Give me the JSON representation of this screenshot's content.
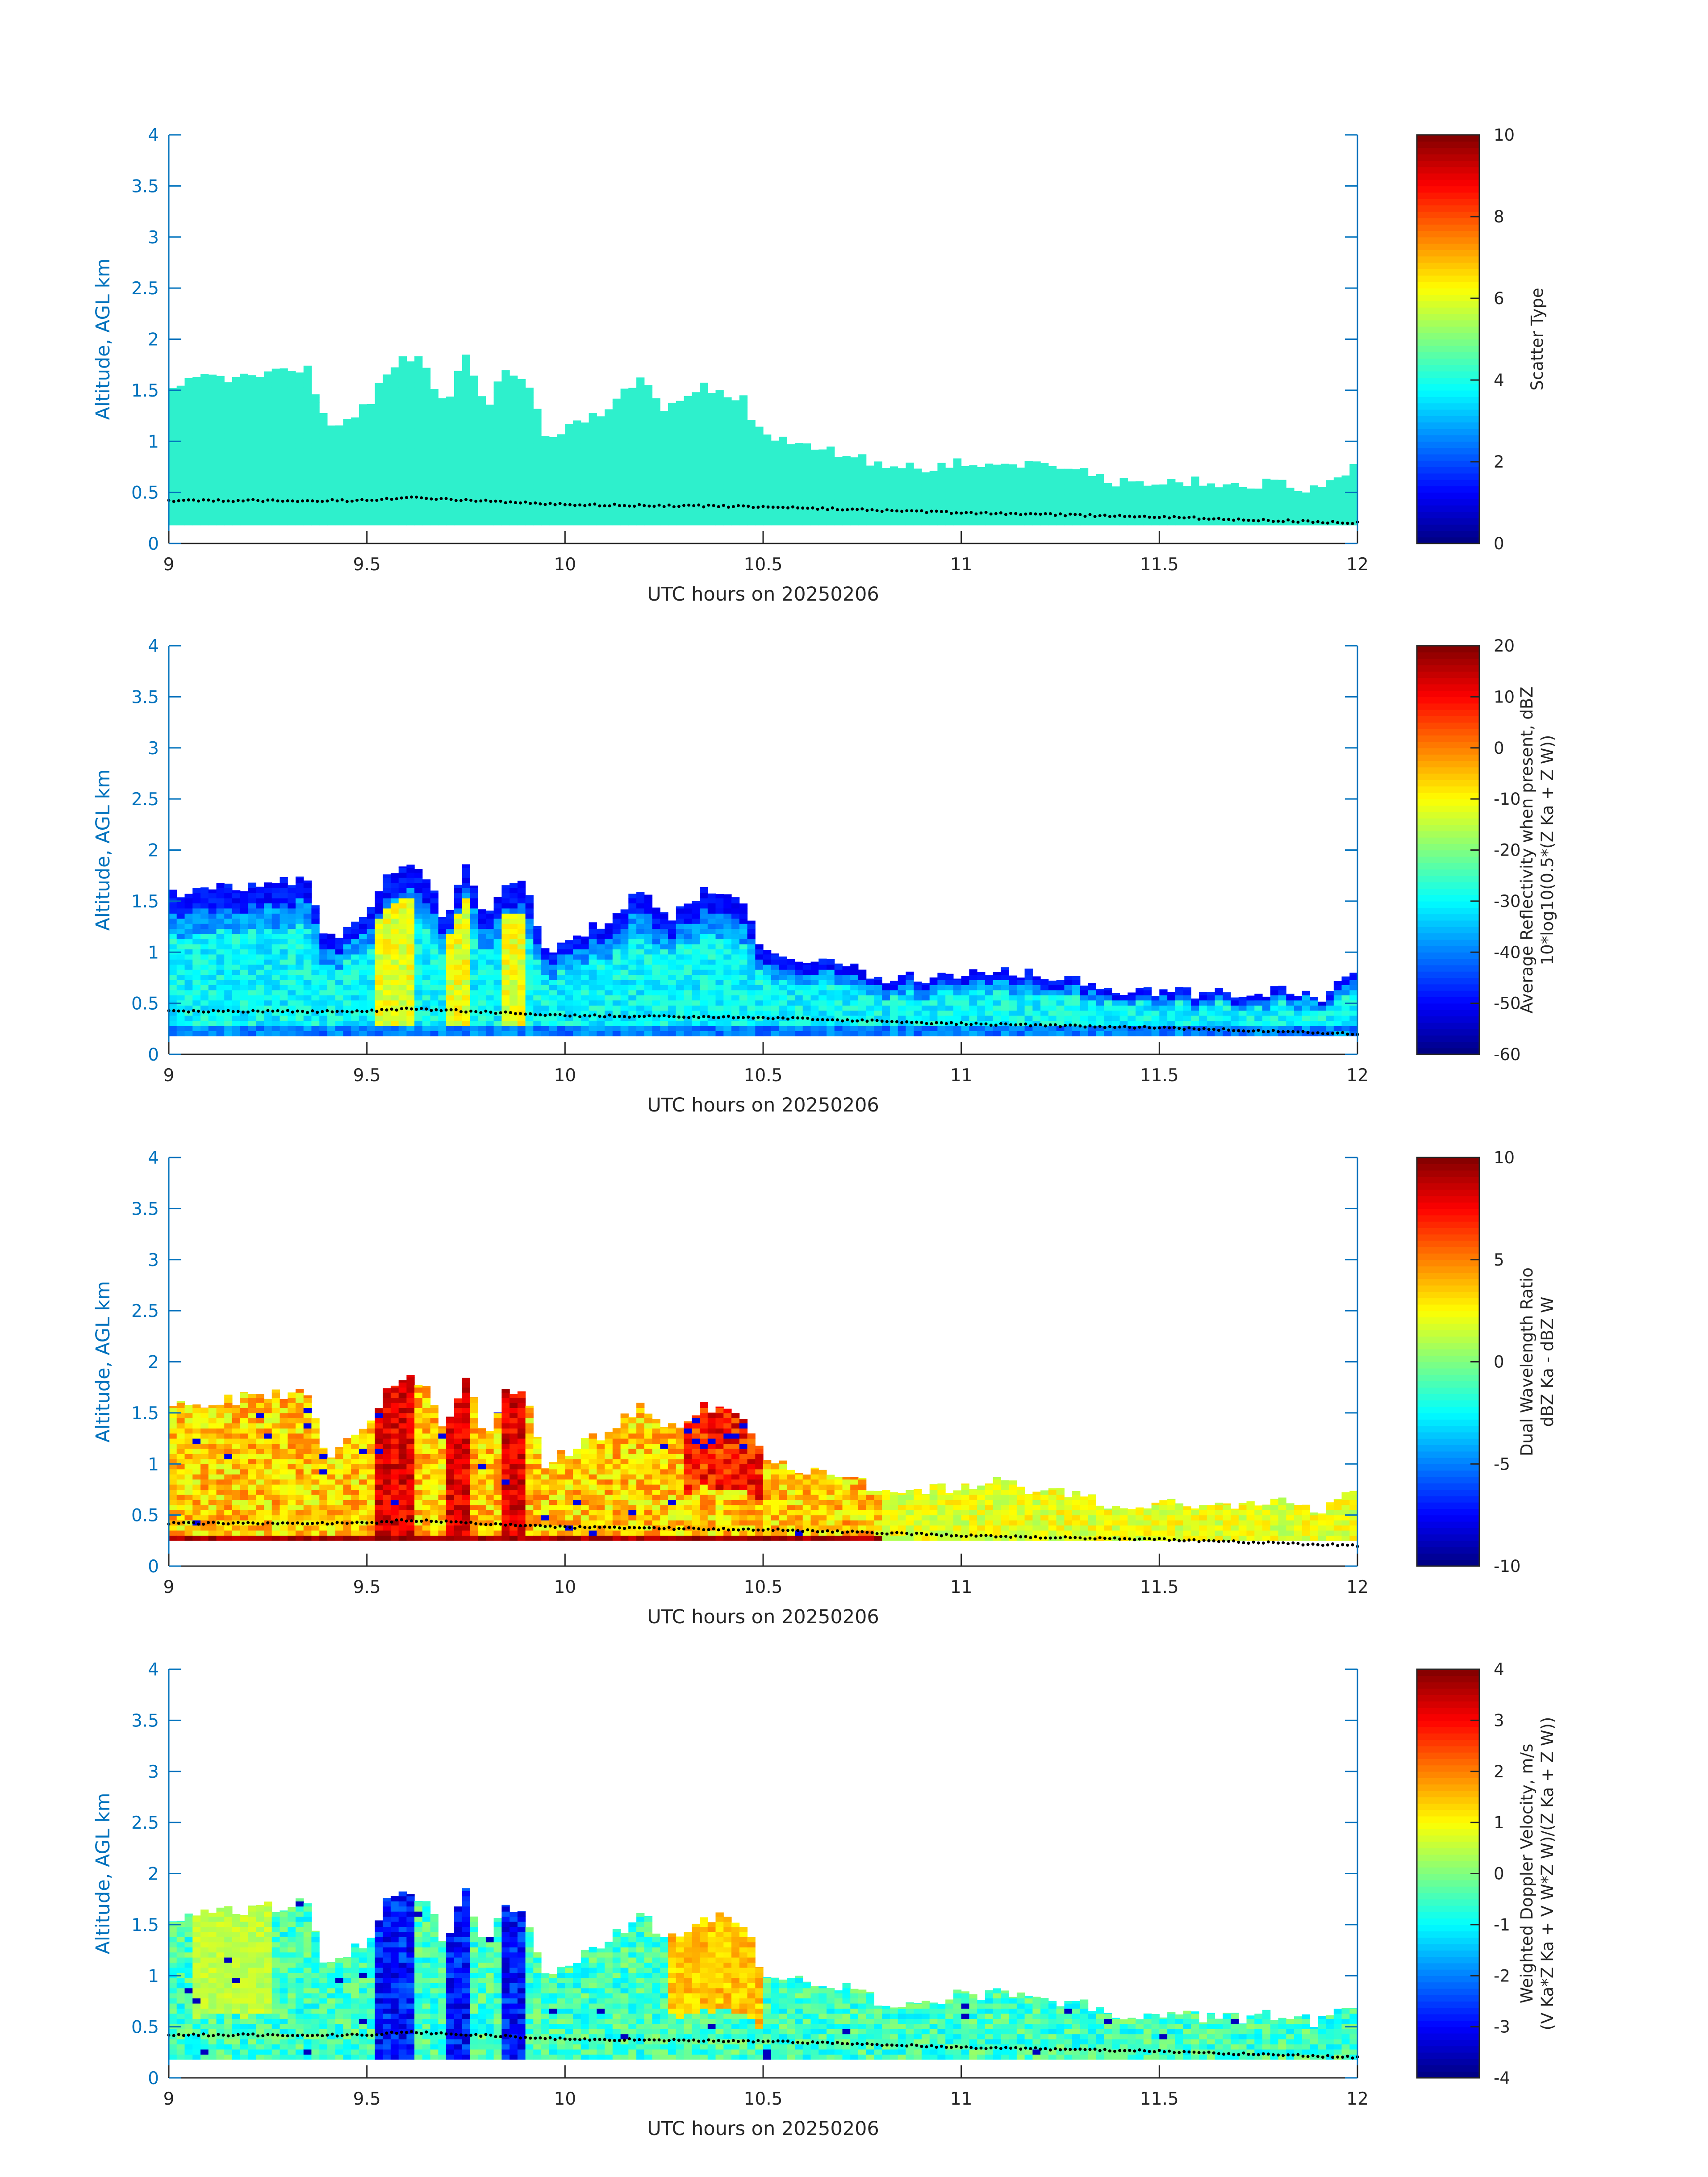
{
  "figure": {
    "colors": {
      "axis": "#262626",
      "yaxis": "#0072bd",
      "scatter_fill": "#2ef0cc",
      "ground_dots": "#000000"
    }
  },
  "chart_data": [
    {
      "type": "heatmap",
      "title": "",
      "xlabel": "UTC hours on 20250206",
      "ylabel": "Altitude, AGL km",
      "xlim": [
        9,
        12
      ],
      "ylim": [
        0,
        4
      ],
      "xticks": [
        "9",
        "9.5",
        "10",
        "10.5",
        "11",
        "11.5",
        "12"
      ],
      "yticks": [
        "0",
        "0.5",
        "1",
        "1.5",
        "2",
        "2.5",
        "3",
        "3.5",
        "4"
      ],
      "colorbar": {
        "label_lines": [
          "Scatter Type"
        ],
        "clim": [
          0,
          10
        ],
        "ticks": [
          "0",
          "2",
          "4",
          "6",
          "8",
          "10"
        ]
      },
      "field": "scatter",
      "value_note": "Uniform scatter type ~3.6 throughout echo",
      "echo_base_km": 0.18,
      "echo_top_km": [
        [
          9.0,
          1.5
        ],
        [
          9.1,
          1.62
        ],
        [
          9.2,
          1.62
        ],
        [
          9.35,
          1.72
        ],
        [
          9.4,
          1.1
        ],
        [
          9.5,
          1.35
        ],
        [
          9.55,
          1.7
        ],
        [
          9.6,
          1.85
        ],
        [
          9.65,
          1.75
        ],
        [
          9.7,
          1.3
        ],
        [
          9.75,
          1.85
        ],
        [
          9.8,
          1.3
        ],
        [
          9.85,
          1.7
        ],
        [
          9.9,
          1.65
        ],
        [
          9.95,
          1.0
        ],
        [
          10.0,
          1.1
        ],
        [
          10.1,
          1.3
        ],
        [
          10.2,
          1.65
        ],
        [
          10.25,
          1.35
        ],
        [
          10.3,
          1.4
        ],
        [
          10.35,
          1.55
        ],
        [
          10.45,
          1.4
        ],
        [
          10.5,
          1.05
        ],
        [
          10.6,
          0.95
        ],
        [
          10.7,
          0.9
        ],
        [
          10.8,
          0.75
        ],
        [
          10.9,
          0.75
        ],
        [
          11.0,
          0.8
        ],
        [
          11.1,
          0.8
        ],
        [
          11.2,
          0.75
        ],
        [
          11.3,
          0.72
        ],
        [
          11.4,
          0.6
        ],
        [
          11.5,
          0.62
        ],
        [
          11.6,
          0.6
        ],
        [
          11.7,
          0.58
        ],
        [
          11.8,
          0.58
        ],
        [
          11.9,
          0.55
        ],
        [
          12.0,
          0.75
        ]
      ],
      "ground_line_km": [
        [
          9.0,
          0.42
        ],
        [
          9.5,
          0.42
        ],
        [
          9.6,
          0.45
        ],
        [
          10.0,
          0.38
        ],
        [
          10.5,
          0.36
        ],
        [
          11.0,
          0.3
        ],
        [
          11.5,
          0.26
        ],
        [
          12.0,
          0.2
        ]
      ]
    },
    {
      "type": "heatmap",
      "title": "",
      "xlabel": "UTC hours on 20250206",
      "ylabel": "Altitude, AGL km",
      "xlim": [
        9,
        12
      ],
      "ylim": [
        0,
        4
      ],
      "xticks": [
        "9",
        "9.5",
        "10",
        "10.5",
        "11",
        "11.5",
        "12"
      ],
      "yticks": [
        "0",
        "0.5",
        "1",
        "1.5",
        "2",
        "2.5",
        "3",
        "3.5",
        "4"
      ],
      "colorbar": {
        "label_lines": [
          "Average Reflectivity when present, dBZ",
          "10*log10(0.5*(Z Ka + Z W))"
        ],
        "clim": [
          -60,
          20
        ],
        "ticks": [
          "-60",
          "-50",
          "-40",
          "-30",
          "-20",
          "-10",
          "0",
          "10",
          "20"
        ]
      },
      "field": "reflectivity",
      "value_note": "Mostly -35 to -25 dBZ; -55 dBZ near echo tops; -15 to -5 dBZ in columns near 9.55-9.85 h",
      "echo_base_km": 0.18,
      "echo_top_km": [
        [
          9.0,
          1.55
        ],
        [
          9.1,
          1.65
        ],
        [
          9.2,
          1.65
        ],
        [
          9.35,
          1.7
        ],
        [
          9.4,
          1.1
        ],
        [
          9.5,
          1.35
        ],
        [
          9.55,
          1.75
        ],
        [
          9.6,
          1.85
        ],
        [
          9.65,
          1.75
        ],
        [
          9.7,
          1.3
        ],
        [
          9.75,
          1.85
        ],
        [
          9.8,
          1.3
        ],
        [
          9.85,
          1.7
        ],
        [
          9.9,
          1.65
        ],
        [
          9.95,
          1.0
        ],
        [
          10.0,
          1.1
        ],
        [
          10.1,
          1.3
        ],
        [
          10.2,
          1.65
        ],
        [
          10.25,
          1.35
        ],
        [
          10.3,
          1.4
        ],
        [
          10.35,
          1.6
        ],
        [
          10.45,
          1.45
        ],
        [
          10.5,
          1.05
        ],
        [
          10.6,
          0.95
        ],
        [
          10.7,
          0.9
        ],
        [
          10.8,
          0.75
        ],
        [
          10.9,
          0.75
        ],
        [
          11.0,
          0.8
        ],
        [
          11.1,
          0.82
        ],
        [
          11.2,
          0.78
        ],
        [
          11.3,
          0.72
        ],
        [
          11.4,
          0.62
        ],
        [
          11.5,
          0.62
        ],
        [
          11.6,
          0.6
        ],
        [
          11.7,
          0.58
        ],
        [
          11.8,
          0.62
        ],
        [
          11.9,
          0.55
        ],
        [
          12.0,
          0.78
        ]
      ],
      "ground_line_km": [
        [
          9.0,
          0.42
        ],
        [
          9.5,
          0.42
        ],
        [
          9.6,
          0.45
        ],
        [
          10.0,
          0.38
        ],
        [
          10.5,
          0.36
        ],
        [
          11.0,
          0.3
        ],
        [
          11.5,
          0.26
        ],
        [
          12.0,
          0.2
        ]
      ]
    },
    {
      "type": "heatmap",
      "title": "",
      "xlabel": "UTC hours on 20250206",
      "ylabel": "Altitude, AGL km",
      "xlim": [
        9,
        12
      ],
      "ylim": [
        0,
        4
      ],
      "xticks": [
        "9",
        "9.5",
        "10",
        "10.5",
        "11",
        "11.5",
        "12"
      ],
      "yticks": [
        "0",
        "0.5",
        "1",
        "1.5",
        "2",
        "2.5",
        "3",
        "3.5",
        "4"
      ],
      "colorbar": {
        "label_lines": [
          "Dual Wavelength Ratio",
          "dBZ Ka - dBZ W"
        ],
        "clim": [
          -10,
          10
        ],
        "ticks": [
          "-10",
          "-5",
          "0",
          "5",
          "10"
        ]
      },
      "field": "dwr",
      "value_note": "Mostly 2 to 5 dB; 6 to 9 dB in dense columns; ~8 to 10 dB in a thin layer near 0.28 km",
      "echo_base_km": 0.25,
      "echo_top_km": [
        [
          9.0,
          1.6
        ],
        [
          9.1,
          1.6
        ],
        [
          9.2,
          1.65
        ],
        [
          9.35,
          1.7
        ],
        [
          9.4,
          1.05
        ],
        [
          9.5,
          1.35
        ],
        [
          9.55,
          1.75
        ],
        [
          9.6,
          1.85
        ],
        [
          9.65,
          1.75
        ],
        [
          9.7,
          1.3
        ],
        [
          9.75,
          1.85
        ],
        [
          9.8,
          1.3
        ],
        [
          9.85,
          1.7
        ],
        [
          9.9,
          1.65
        ],
        [
          9.95,
          1.0
        ],
        [
          10.0,
          1.1
        ],
        [
          10.1,
          1.3
        ],
        [
          10.2,
          1.6
        ],
        [
          10.25,
          1.35
        ],
        [
          10.3,
          1.4
        ],
        [
          10.35,
          1.55
        ],
        [
          10.45,
          1.45
        ],
        [
          10.5,
          1.05
        ],
        [
          10.6,
          0.95
        ],
        [
          10.7,
          0.9
        ],
        [
          10.8,
          0.75
        ],
        [
          10.9,
          0.72
        ],
        [
          11.0,
          0.8
        ],
        [
          11.1,
          0.82
        ],
        [
          11.2,
          0.72
        ],
        [
          11.3,
          0.72
        ],
        [
          11.4,
          0.55
        ],
        [
          11.5,
          0.62
        ],
        [
          11.6,
          0.6
        ],
        [
          11.7,
          0.58
        ],
        [
          11.8,
          0.62
        ],
        [
          11.9,
          0.55
        ],
        [
          12.0,
          0.78
        ]
      ],
      "ground_line_km": [
        [
          9.0,
          0.42
        ],
        [
          9.5,
          0.42
        ],
        [
          9.6,
          0.45
        ],
        [
          10.0,
          0.38
        ],
        [
          10.5,
          0.36
        ],
        [
          11.0,
          0.3
        ],
        [
          11.5,
          0.26
        ],
        [
          12.0,
          0.2
        ]
      ]
    },
    {
      "type": "heatmap",
      "title": "",
      "xlabel": "UTC hours on 20250206",
      "ylabel": "Altitude, AGL km",
      "xlim": [
        9,
        12
      ],
      "ylim": [
        0,
        4
      ],
      "xticks": [
        "9",
        "9.5",
        "10",
        "10.5",
        "11",
        "11.5",
        "12"
      ],
      "yticks": [
        "0",
        "0.5",
        "1",
        "1.5",
        "2",
        "2.5",
        "3",
        "3.5",
        "4"
      ],
      "colorbar": {
        "label_lines": [
          "Weighted Doppler Velocity, m/s",
          "(V Ka*Z Ka + V W*Z W)/(Z Ka + Z W))"
        ],
        "clim": [
          -4,
          4
        ],
        "ticks": [
          "-4",
          "-3",
          "-2",
          "-1",
          "0",
          "1",
          "2",
          "3",
          "4"
        ]
      },
      "field": "velocity",
      "value_note": "Mostly -1 to 0.5 m/s; -3.5 to -2.5 m/s in strong downdrafts near 9.55-9.85 h; up to +2 m/s near 10.35-10.45 h",
      "echo_base_km": 0.18,
      "echo_top_km": [
        [
          9.0,
          1.55
        ],
        [
          9.1,
          1.65
        ],
        [
          9.2,
          1.65
        ],
        [
          9.35,
          1.72
        ],
        [
          9.4,
          1.05
        ],
        [
          9.5,
          1.35
        ],
        [
          9.55,
          1.75
        ],
        [
          9.6,
          1.85
        ],
        [
          9.65,
          1.75
        ],
        [
          9.7,
          1.3
        ],
        [
          9.75,
          1.85
        ],
        [
          9.8,
          1.3
        ],
        [
          9.85,
          1.7
        ],
        [
          9.9,
          1.65
        ],
        [
          9.95,
          1.0
        ],
        [
          10.0,
          1.1
        ],
        [
          10.1,
          1.3
        ],
        [
          10.2,
          1.65
        ],
        [
          10.25,
          1.35
        ],
        [
          10.3,
          1.45
        ],
        [
          10.35,
          1.6
        ],
        [
          10.45,
          1.5
        ],
        [
          10.5,
          1.05
        ],
        [
          10.6,
          0.95
        ],
        [
          10.7,
          0.9
        ],
        [
          10.8,
          0.75
        ],
        [
          10.9,
          0.72
        ],
        [
          11.0,
          0.82
        ],
        [
          11.1,
          0.82
        ],
        [
          11.2,
          0.75
        ],
        [
          11.3,
          0.72
        ],
        [
          11.4,
          0.6
        ],
        [
          11.5,
          0.62
        ],
        [
          11.6,
          0.6
        ],
        [
          11.7,
          0.58
        ],
        [
          11.8,
          0.62
        ],
        [
          11.9,
          0.55
        ],
        [
          12.0,
          0.75
        ]
      ],
      "ground_line_km": [
        [
          9.0,
          0.42
        ],
        [
          9.5,
          0.42
        ],
        [
          9.6,
          0.45
        ],
        [
          10.0,
          0.38
        ],
        [
          10.5,
          0.36
        ],
        [
          11.0,
          0.3
        ],
        [
          11.5,
          0.26
        ],
        [
          12.0,
          0.2
        ]
      ]
    }
  ]
}
